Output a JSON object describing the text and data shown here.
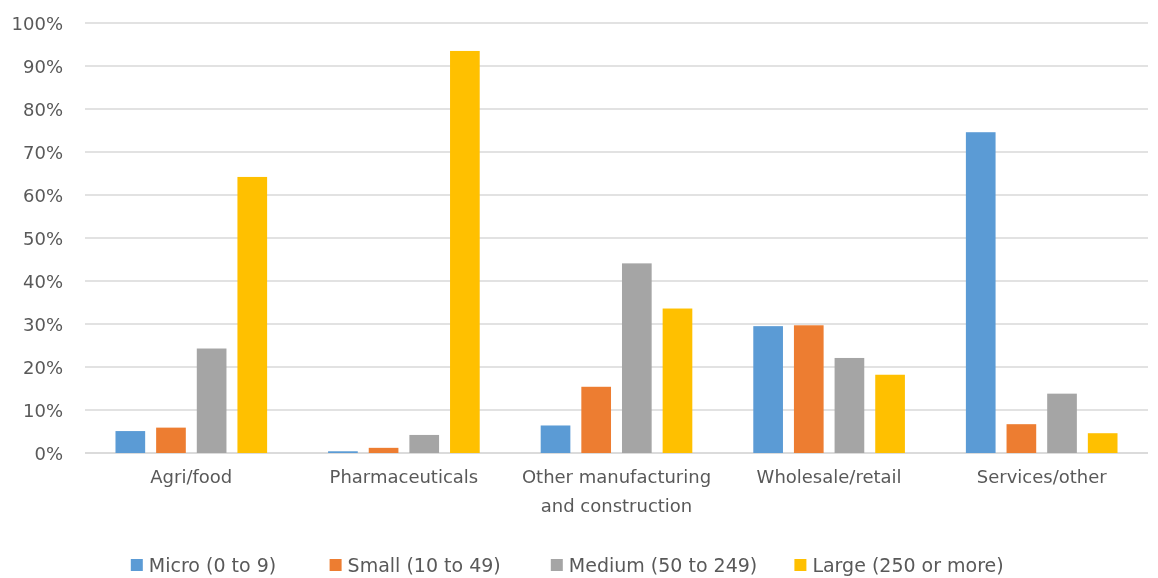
{
  "chart_data": {
    "type": "bar",
    "categories": [
      "Agri/food",
      "Pharmaceuticals",
      "Other manufacturing and construction",
      "Wholesale/retail",
      "Services/other"
    ],
    "series": [
      {
        "name": "Micro (0 to 9)",
        "color": "#5b9bd5",
        "values": [
          5.1,
          0.4,
          6.4,
          29.5,
          74.6
        ]
      },
      {
        "name": "Small (10 to 49)",
        "color": "#ed7d31",
        "values": [
          5.9,
          1.2,
          15.4,
          29.7,
          6.7
        ]
      },
      {
        "name": "Medium (50 to 249)",
        "color": "#a5a5a5",
        "values": [
          24.3,
          4.2,
          44.1,
          22.1,
          13.8
        ]
      },
      {
        "name": "Large (250 or more)",
        "color": "#ffc000",
        "values": [
          64.2,
          93.5,
          33.6,
          18.2,
          4.6
        ]
      }
    ],
    "ylim": [
      0,
      100
    ],
    "yticks": [
      {
        "value": 0,
        "label": "0%"
      },
      {
        "value": 10,
        "label": "10%"
      },
      {
        "value": 20,
        "label": "20%"
      },
      {
        "value": 30,
        "label": "30%"
      },
      {
        "value": 40,
        "label": "40%"
      },
      {
        "value": 50,
        "label": "50%"
      },
      {
        "value": 60,
        "label": "60%"
      },
      {
        "value": 70,
        "label": "70%"
      },
      {
        "value": 80,
        "label": "80%"
      },
      {
        "value": 90,
        "label": "90%"
      },
      {
        "value": 100,
        "label": "100%"
      }
    ],
    "grid": "y",
    "legend": "bottom"
  }
}
